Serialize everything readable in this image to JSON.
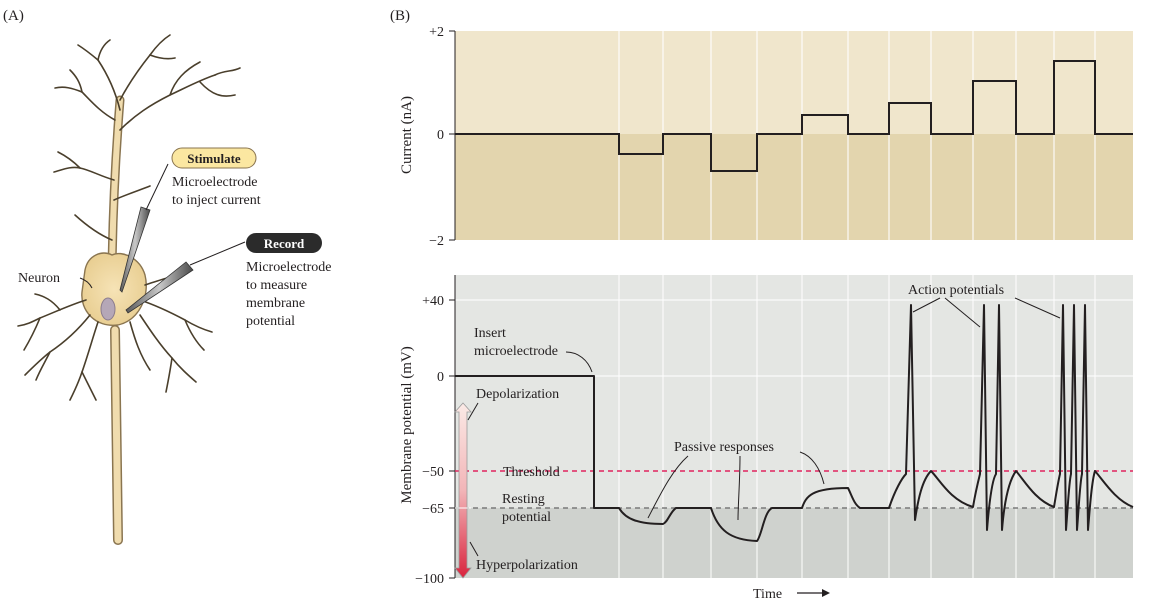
{
  "panel_a": {
    "label": "(A)",
    "stimulate": {
      "badge": "Stimulate",
      "line1": "Microelectrode",
      "line2": "to inject current"
    },
    "record": {
      "badge": "Record",
      "line1": "Microelectrode",
      "line2": "to measure",
      "line3": "membrane",
      "line4": "potential"
    },
    "neuron_label": "Neuron"
  },
  "panel_b": {
    "label": "(B)",
    "current_plot": {
      "ylabel": "Current (nA)",
      "ticks": [
        "+2",
        "0",
        "−2"
      ]
    },
    "voltage_plot": {
      "ylabel": "Membrane potential (mV)",
      "ticks": [
        "+40",
        "0",
        "−50",
        "−65",
        "−100"
      ],
      "xlabel": "Time",
      "annotations": {
        "insert_line1": "Insert",
        "insert_line2": "microelectrode",
        "depolarization": "Depolarization",
        "hyperpolarization": "Hyperpolarization",
        "threshold": "Threshold",
        "resting_line1": "Resting",
        "resting_line2": "potential",
        "passive": "Passive responses",
        "action": "Action potentials"
      }
    }
  },
  "colors": {
    "current_bg": "#f0e6cc",
    "current_bg_negative": "#e3d5ae",
    "voltage_bg": "#e4e6e3",
    "voltage_bg_below_rest": "#cfd2ce",
    "threshold_line": "#e0245e",
    "resting_line": "#7a7a7a",
    "neuron_fill": "#f0dcae",
    "stimulate_badge": "#fbe7a1",
    "record_badge": "#2b2b2b"
  }
}
